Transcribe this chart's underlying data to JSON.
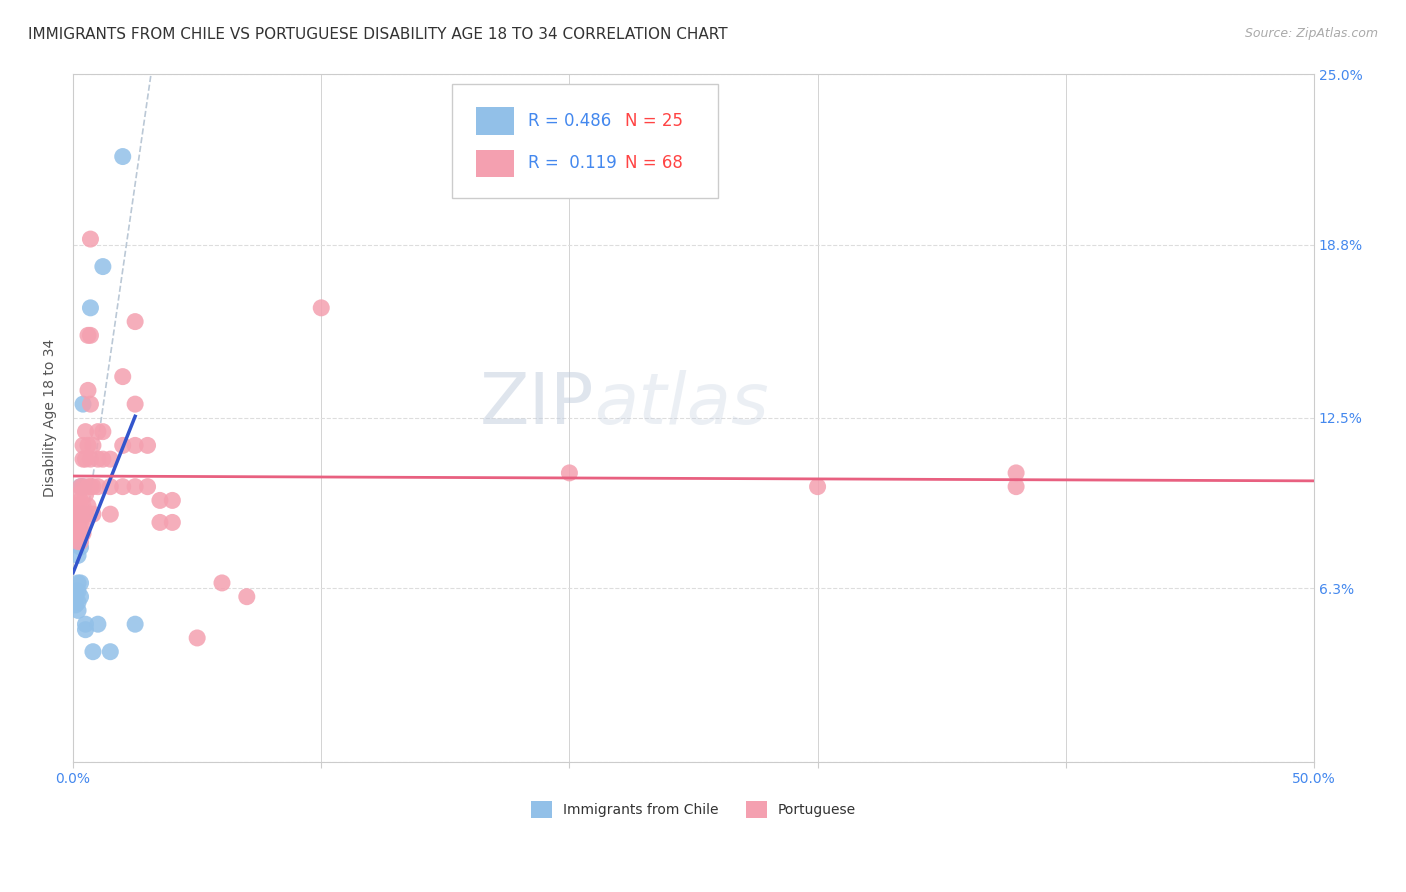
{
  "title": "IMMIGRANTS FROM CHILE VS PORTUGUESE DISABILITY AGE 18 TO 34 CORRELATION CHART",
  "source": "Source: ZipAtlas.com",
  "ylabel_label": "Disability Age 18 to 34",
  "xlim": [
    0.0,
    0.5
  ],
  "ylim": [
    0.0,
    0.25
  ],
  "chile_color": "#92c0e8",
  "portuguese_color": "#f4a0b0",
  "chile_R": 0.486,
  "chile_N": 25,
  "portuguese_R": 0.119,
  "portuguese_N": 68,
  "chile_line_color": "#3355cc",
  "portuguese_line_color": "#e86080",
  "diagonal_color": "#aabbcc",
  "chile_points": [
    [
      0.001,
      0.062
    ],
    [
      0.001,
      0.06
    ],
    [
      0.001,
      0.057
    ],
    [
      0.002,
      0.09
    ],
    [
      0.002,
      0.075
    ],
    [
      0.002,
      0.065
    ],
    [
      0.002,
      0.062
    ],
    [
      0.002,
      0.058
    ],
    [
      0.002,
      0.055
    ],
    [
      0.003,
      0.1
    ],
    [
      0.003,
      0.078
    ],
    [
      0.003,
      0.065
    ],
    [
      0.003,
      0.06
    ],
    [
      0.004,
      0.13
    ],
    [
      0.004,
      0.1
    ],
    [
      0.004,
      0.09
    ],
    [
      0.005,
      0.05
    ],
    [
      0.005,
      0.048
    ],
    [
      0.007,
      0.165
    ],
    [
      0.008,
      0.04
    ],
    [
      0.01,
      0.05
    ],
    [
      0.012,
      0.18
    ],
    [
      0.015,
      0.04
    ],
    [
      0.02,
      0.22
    ],
    [
      0.025,
      0.05
    ]
  ],
  "portuguese_points": [
    [
      0.001,
      0.093
    ],
    [
      0.001,
      0.09
    ],
    [
      0.001,
      0.087
    ],
    [
      0.001,
      0.083
    ],
    [
      0.002,
      0.097
    ],
    [
      0.002,
      0.093
    ],
    [
      0.002,
      0.09
    ],
    [
      0.002,
      0.087
    ],
    [
      0.002,
      0.083
    ],
    [
      0.002,
      0.08
    ],
    [
      0.003,
      0.1
    ],
    [
      0.003,
      0.095
    ],
    [
      0.003,
      0.09
    ],
    [
      0.003,
      0.087
    ],
    [
      0.003,
      0.083
    ],
    [
      0.003,
      0.08
    ],
    [
      0.004,
      0.115
    ],
    [
      0.004,
      0.11
    ],
    [
      0.004,
      0.1
    ],
    [
      0.004,
      0.093
    ],
    [
      0.004,
      0.087
    ],
    [
      0.004,
      0.083
    ],
    [
      0.005,
      0.12
    ],
    [
      0.005,
      0.11
    ],
    [
      0.005,
      0.097
    ],
    [
      0.005,
      0.09
    ],
    [
      0.006,
      0.155
    ],
    [
      0.006,
      0.135
    ],
    [
      0.006,
      0.115
    ],
    [
      0.006,
      0.1
    ],
    [
      0.006,
      0.093
    ],
    [
      0.007,
      0.19
    ],
    [
      0.007,
      0.155
    ],
    [
      0.007,
      0.13
    ],
    [
      0.007,
      0.11
    ],
    [
      0.007,
      0.1
    ],
    [
      0.008,
      0.115
    ],
    [
      0.008,
      0.1
    ],
    [
      0.008,
      0.09
    ],
    [
      0.01,
      0.12
    ],
    [
      0.01,
      0.11
    ],
    [
      0.01,
      0.1
    ],
    [
      0.012,
      0.12
    ],
    [
      0.012,
      0.11
    ],
    [
      0.015,
      0.11
    ],
    [
      0.015,
      0.1
    ],
    [
      0.015,
      0.09
    ],
    [
      0.02,
      0.14
    ],
    [
      0.02,
      0.115
    ],
    [
      0.02,
      0.1
    ],
    [
      0.025,
      0.16
    ],
    [
      0.025,
      0.13
    ],
    [
      0.025,
      0.115
    ],
    [
      0.025,
      0.1
    ],
    [
      0.03,
      0.115
    ],
    [
      0.03,
      0.1
    ],
    [
      0.035,
      0.095
    ],
    [
      0.035,
      0.087
    ],
    [
      0.04,
      0.095
    ],
    [
      0.04,
      0.087
    ],
    [
      0.05,
      0.045
    ],
    [
      0.06,
      0.065
    ],
    [
      0.07,
      0.06
    ],
    [
      0.1,
      0.165
    ],
    [
      0.2,
      0.105
    ],
    [
      0.3,
      0.1
    ],
    [
      0.38,
      0.105
    ],
    [
      0.38,
      0.1
    ]
  ],
  "grid_color": "#dddddd",
  "background_color": "#ffffff",
  "title_fontsize": 11,
  "axis_label_fontsize": 10,
  "tick_fontsize": 10,
  "legend_fontsize": 12,
  "watermark_text": "ZIPatlas",
  "watermark_color": "#c8d8e8",
  "watermark_fontsize": 52
}
